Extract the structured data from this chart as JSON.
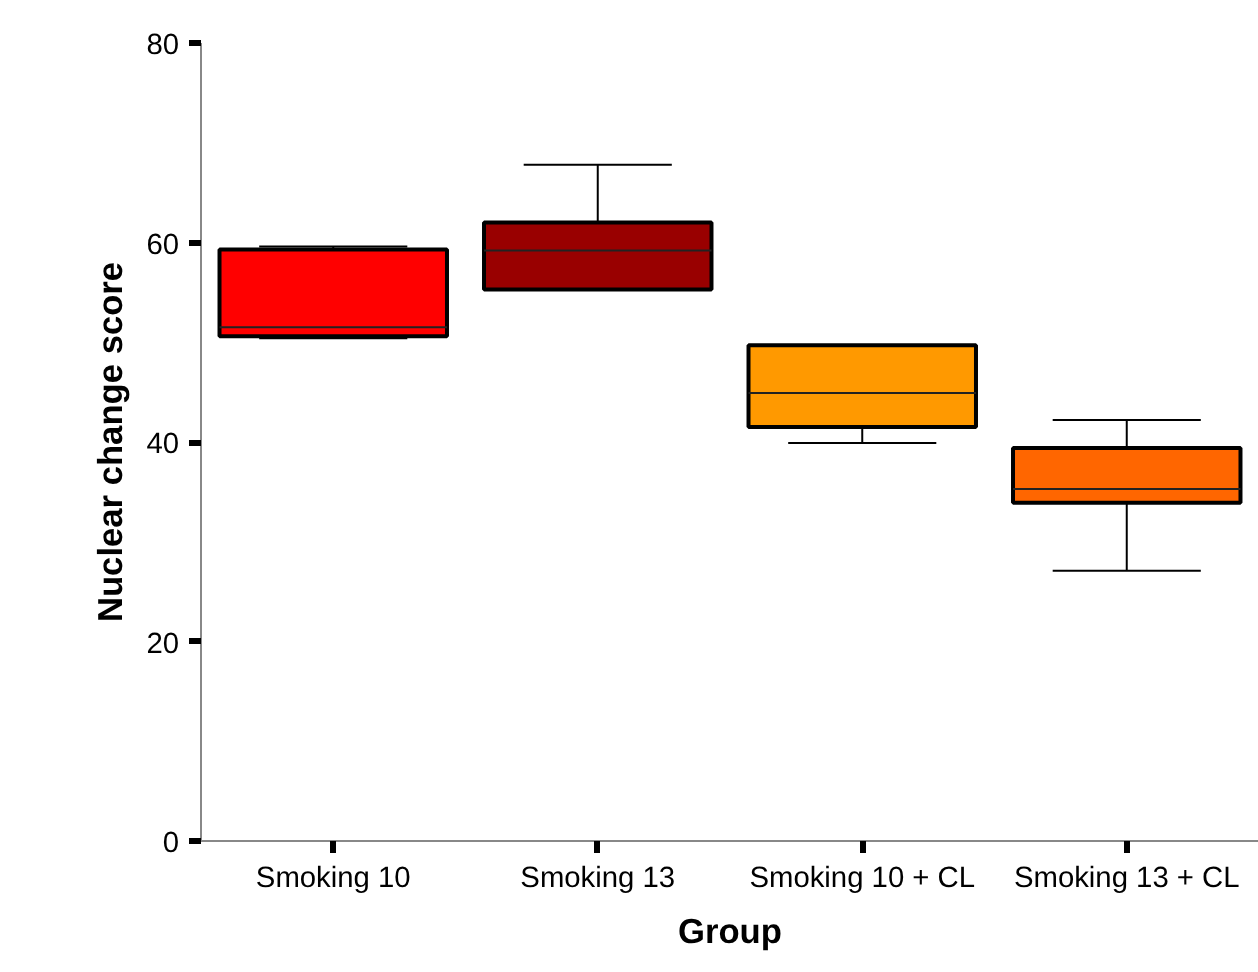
{
  "chart_data": {
    "type": "box",
    "xlabel": "Group",
    "ylabel": "Nuclear change score",
    "categories": [
      "Smoking 10",
      "Smoking 13",
      "Smoking 10 + CL",
      "Smoking 13 + CL"
    ],
    "colors": [
      "#ff0000",
      "#990000",
      "#ff9900",
      "#ff6600"
    ],
    "boxes": [
      {
        "low": 50.4,
        "q1": 50.6,
        "median": 51.5,
        "q3": 59.3,
        "high": 59.6
      },
      {
        "low": 55.3,
        "q1": 55.3,
        "median": 59.2,
        "q3": 62.0,
        "high": 67.8
      },
      {
        "low": 39.9,
        "q1": 41.5,
        "median": 44.9,
        "q3": 49.7,
        "high": 49.7
      },
      {
        "low": 27.1,
        "q1": 33.9,
        "median": 35.3,
        "q3": 39.4,
        "high": 42.2
      }
    ],
    "ylim": [
      0,
      80
    ],
    "yticks": [
      0,
      20,
      40,
      60,
      80
    ]
  }
}
